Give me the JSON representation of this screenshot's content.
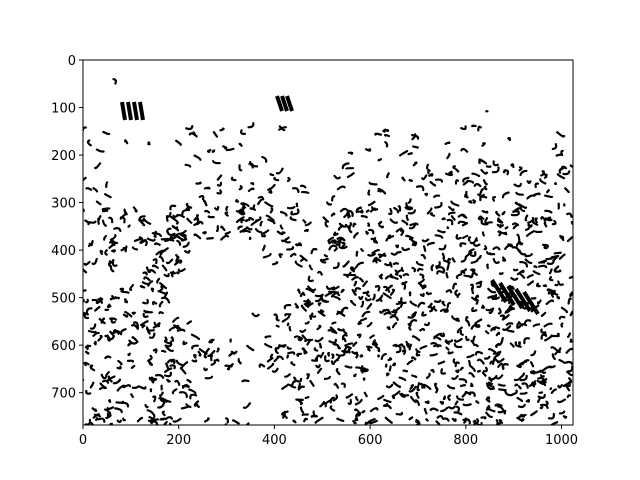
{
  "chart_data": {
    "type": "image",
    "xlim": [
      0,
      1024
    ],
    "ylim": [
      768,
      0
    ],
    "xticks": [
      0,
      200,
      400,
      600,
      800,
      1000
    ],
    "yticks": [
      0,
      100,
      200,
      300,
      400,
      500,
      600,
      700
    ]
  }
}
